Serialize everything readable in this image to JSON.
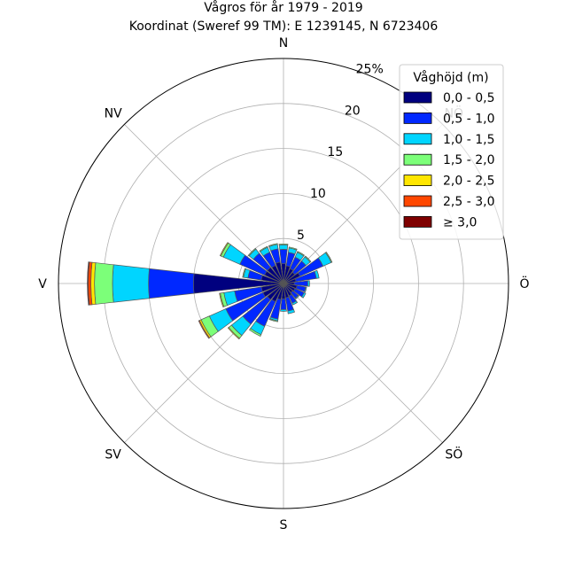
{
  "chart_data": {
    "type": "bar",
    "subtype": "wind-rose",
    "title": "Vågros för år 1979 - 2019",
    "subtitle": "Koordinat (Sweref 99 TM): E 1239145, N 6723406",
    "directions": [
      "N",
      "NV",
      "V",
      "SV",
      "S",
      "SÖ",
      "Ö",
      "NÖ"
    ],
    "radial_ticks": [
      "5",
      "10",
      "15",
      "20",
      "25%"
    ],
    "radial_max": 25,
    "legend": {
      "title": "Våghöjd (m)",
      "placement": "top-right"
    },
    "bins": [
      {
        "label": "0,0 - 0,5",
        "color": "#00007f"
      },
      {
        "label": "0,5 - 1,0",
        "color": "#0028ff"
      },
      {
        "label": "1,0 - 1,5",
        "color": "#00d5ff"
      },
      {
        "label": "1,5 - 2,0",
        "color": "#7cff79"
      },
      {
        "label": "2,0 - 2,5",
        "color": "#ffe600"
      },
      {
        "label": "2,5 - 3,0",
        "color": "#ff4700"
      },
      {
        "label": "≥ 3,0",
        "color": "#7f0000"
      }
    ],
    "sectors": [
      {
        "bearing": 0,
        "values": [
          2.2,
          1.6,
          0.5,
          0.1,
          0,
          0,
          0
        ]
      },
      {
        "bearing": 15,
        "values": [
          2.0,
          1.5,
          0.5,
          0.1,
          0,
          0,
          0
        ]
      },
      {
        "bearing": 30,
        "values": [
          1.8,
          1.4,
          0.6,
          0.1,
          0,
          0,
          0
        ]
      },
      {
        "bearing": 45,
        "values": [
          1.6,
          1.6,
          0.6,
          0.1,
          0,
          0,
          0
        ]
      },
      {
        "bearing": 60,
        "values": [
          2.0,
          2.8,
          1.0,
          0.1,
          0,
          0,
          0
        ]
      },
      {
        "bearing": 75,
        "values": [
          1.4,
          2.3,
          0.3,
          0,
          0,
          0,
          0
        ]
      },
      {
        "bearing": 90,
        "values": [
          1.2,
          1.5,
          0.2,
          0,
          0,
          0,
          0
        ]
      },
      {
        "bearing": 105,
        "values": [
          1.5,
          1.0,
          0.1,
          0,
          0,
          0,
          0
        ]
      },
      {
        "bearing": 120,
        "values": [
          1.4,
          1.1,
          0.2,
          0,
          0,
          0,
          0
        ]
      },
      {
        "bearing": 135,
        "values": [
          1.3,
          0.8,
          0.1,
          0,
          0,
          0,
          0
        ]
      },
      {
        "bearing": 150,
        "values": [
          1.5,
          0.9,
          0.2,
          0,
          0,
          0,
          0
        ]
      },
      {
        "bearing": 165,
        "values": [
          1.6,
          1.5,
          0.3,
          0,
          0,
          0,
          0
        ]
      },
      {
        "bearing": 180,
        "values": [
          1.7,
          1.2,
          0.2,
          0,
          0,
          0,
          0
        ]
      },
      {
        "bearing": 195,
        "values": [
          1.8,
          2.2,
          0.2,
          0.1,
          0,
          0,
          0
        ]
      },
      {
        "bearing": 210,
        "values": [
          2.2,
          3.0,
          1.0,
          0.2,
          0,
          0,
          0
        ]
      },
      {
        "bearing": 225,
        "values": [
          2.3,
          3.5,
          1.6,
          0.4,
          0.1,
          0,
          0
        ]
      },
      {
        "bearing": 240,
        "values": [
          2.5,
          4.5,
          2.0,
          1.0,
          0.2,
          0.1,
          0
        ]
      },
      {
        "bearing": 255,
        "values": [
          2.5,
          3.0,
          1.2,
          0.4,
          0.1,
          0,
          0
        ]
      },
      {
        "bearing": 270,
        "values": [
          10.0,
          5.0,
          4.0,
          2.0,
          0.4,
          0.3,
          0.1
        ]
      },
      {
        "bearing": 285,
        "values": [
          2.5,
          1.5,
          0.5,
          0.1,
          0,
          0,
          0
        ]
      },
      {
        "bearing": 300,
        "values": [
          2.3,
          3.0,
          2.0,
          0.3,
          0.1,
          0,
          0
        ]
      },
      {
        "bearing": 315,
        "values": [
          2.3,
          2.0,
          0.6,
          0.1,
          0,
          0,
          0
        ]
      },
      {
        "bearing": 330,
        "values": [
          2.2,
          1.6,
          0.6,
          0.1,
          0,
          0,
          0
        ]
      },
      {
        "bearing": 345,
        "values": [
          2.4,
          1.5,
          0.5,
          0.1,
          0,
          0,
          0
        ]
      }
    ],
    "sector_width_deg": 15,
    "grid": true
  }
}
